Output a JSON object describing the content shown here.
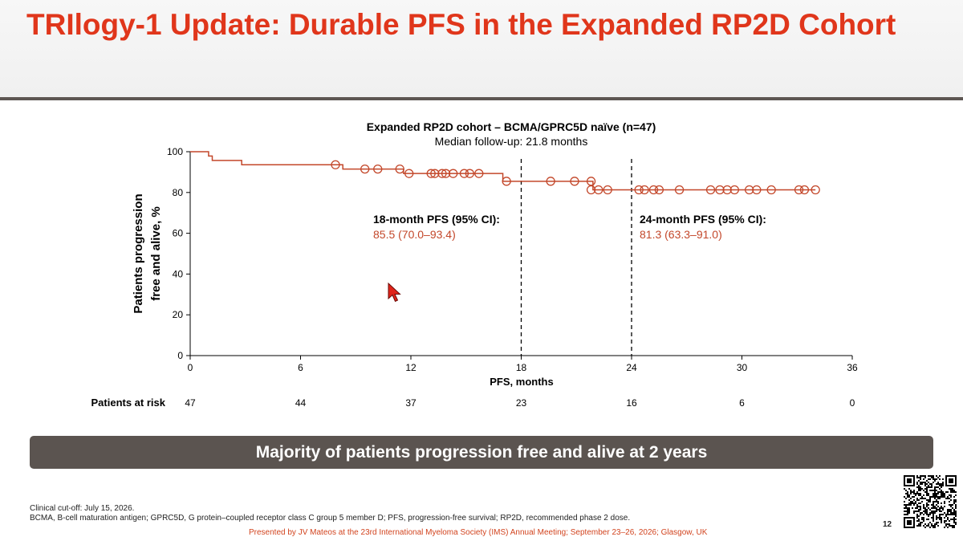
{
  "slide": {
    "title": "TRIlogy-1 Update: Durable PFS in the Expanded RP2D Cohort",
    "banner": "Majority of patients progression free and alive at 2 years",
    "footnote_cutoff": "Clinical cut-off: July 15, 2026.",
    "footnote_abbrev": "BCMA, B-cell maturation antigen; GPRC5D, G protein–coupled receptor class C group 5 member D; PFS, progression-free survival; RP2D, recommended phase 2 dose.",
    "presented_by": "Presented by JV Mateos at the 23rd International Myeloma Society (IMS) Annual Meeting; September 23–26, 2026; Glasgow, UK",
    "slide_number": "12"
  },
  "chart_data": {
    "type": "line",
    "title": "Expanded RP2D cohort – BCMA/GPRC5D naïve (n=47)",
    "subtitle": "Median follow-up: 21.8 months",
    "xlabel": "PFS, months",
    "ylabel_line1": "Patients progression",
    "ylabel_line2": "free and alive, %",
    "xlim": [
      0,
      36
    ],
    "ylim": [
      0,
      100
    ],
    "x_ticks": [
      0,
      6,
      12,
      18,
      24,
      30,
      36
    ],
    "y_ticks": [
      0,
      20,
      40,
      60,
      80,
      100
    ],
    "step_curve": [
      [
        0,
        100
      ],
      [
        1,
        97.9
      ],
      [
        1.2,
        95.7
      ],
      [
        2.8,
        93.6
      ],
      [
        8.3,
        91.5
      ],
      [
        11.6,
        89.3
      ],
      [
        17,
        85.5
      ],
      [
        21.9,
        81.3
      ],
      [
        34,
        81.3
      ]
    ],
    "censor_marks": [
      [
        7.9,
        93.6
      ],
      [
        9.5,
        91.5
      ],
      [
        10.2,
        91.5
      ],
      [
        11.4,
        91.5
      ],
      [
        11.9,
        89.3
      ],
      [
        13.1,
        89.3
      ],
      [
        13.3,
        89.3
      ],
      [
        13.7,
        89.3
      ],
      [
        13.9,
        89.3
      ],
      [
        14.3,
        89.3
      ],
      [
        14.9,
        89.3
      ],
      [
        15.2,
        89.3
      ],
      [
        15.7,
        89.3
      ],
      [
        17.2,
        85.5
      ],
      [
        19.6,
        85.5
      ],
      [
        20.9,
        85.5
      ],
      [
        21.8,
        85.5
      ],
      [
        21.8,
        81.3
      ],
      [
        22.2,
        81.3
      ],
      [
        22.7,
        81.3
      ],
      [
        24.4,
        81.3
      ],
      [
        24.7,
        81.3
      ],
      [
        25.2,
        81.3
      ],
      [
        25.5,
        81.3
      ],
      [
        26.6,
        81.3
      ],
      [
        28.3,
        81.3
      ],
      [
        28.8,
        81.3
      ],
      [
        29.2,
        81.3
      ],
      [
        29.6,
        81.3
      ],
      [
        30.4,
        81.3
      ],
      [
        30.8,
        81.3
      ],
      [
        31.6,
        81.3
      ],
      [
        33.1,
        81.3
      ],
      [
        33.4,
        81.3
      ],
      [
        34,
        81.3
      ]
    ],
    "reference_lines": [
      18,
      24
    ],
    "annotations": [
      {
        "label": "18-month PFS (95% CI):",
        "value": "85.5 (70.0–93.4)"
      },
      {
        "label": "24-month PFS (95% CI):",
        "value": "81.3 (63.3–91.0)"
      }
    ],
    "at_risk_label": "Patients at risk",
    "at_risk": [
      47,
      44,
      37,
      23,
      16,
      6,
      0
    ],
    "curve_color": "#c3472a",
    "annotation_value_color": "#c3472a"
  }
}
